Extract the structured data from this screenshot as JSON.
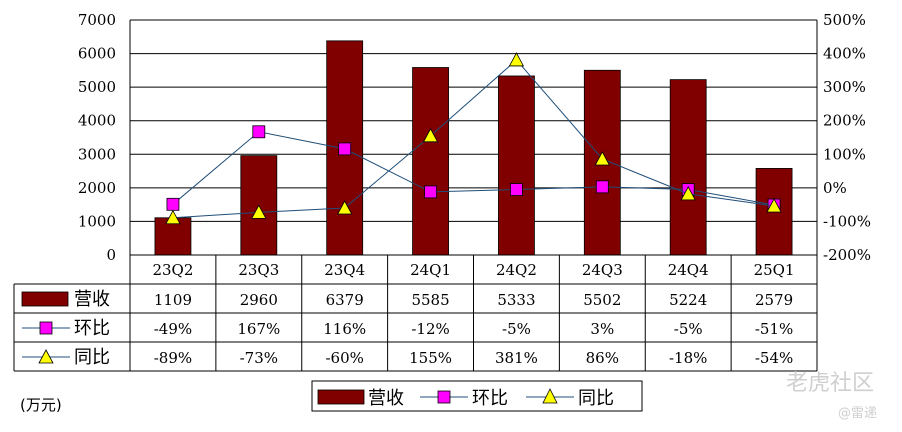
{
  "chart_data": {
    "type": "bar",
    "categories": [
      "23Q2",
      "23Q3",
      "23Q4",
      "24Q1",
      "24Q2",
      "24Q3",
      "24Q4",
      "25Q1"
    ],
    "series": [
      {
        "name": "营收",
        "kind": "bar",
        "axis": "left",
        "values": [
          1109,
          2960,
          6379,
          5585,
          5333,
          5502,
          5224,
          2579
        ],
        "labels": [
          "1109",
          "2960",
          "6379",
          "5585",
          "5333",
          "5502",
          "5224",
          "2579"
        ]
      },
      {
        "name": "环比",
        "kind": "line",
        "marker": "square",
        "axis": "right",
        "values": [
          -49,
          167,
          116,
          -12,
          -5,
          3,
          -5,
          -51
        ],
        "labels": [
          "-49%",
          "167%",
          "116%",
          "-12%",
          "-5%",
          "3%",
          "-5%",
          "-51%"
        ]
      },
      {
        "name": "同比",
        "kind": "line",
        "marker": "triangle",
        "axis": "right",
        "values": [
          -89,
          -73,
          -60,
          155,
          381,
          86,
          -18,
          -54
        ],
        "labels": [
          "-89%",
          "-73%",
          "-60%",
          "155%",
          "381%",
          "86%",
          "-18%",
          "-54%"
        ]
      }
    ],
    "y_left": {
      "ticks": [
        "0",
        "1000",
        "2000",
        "3000",
        "4000",
        "5000",
        "6000",
        "7000"
      ],
      "range": [
        0,
        7000
      ]
    },
    "y_right": {
      "ticks": [
        "-200%",
        "-100%",
        "0%",
        "100%",
        "200%",
        "300%",
        "400%",
        "500%"
      ],
      "range": [
        -200,
        500
      ]
    },
    "unit_label": "(万元)",
    "grid": true,
    "legend_position": "bottom",
    "data_table": true
  },
  "colors": {
    "bar": "#800000",
    "huanbi": "#ff00ff",
    "tongbi": "#ffff00",
    "line": "#1f4e79"
  },
  "watermark": {
    "logo_text": "老虎社区",
    "sub_text": "@雷递"
  }
}
